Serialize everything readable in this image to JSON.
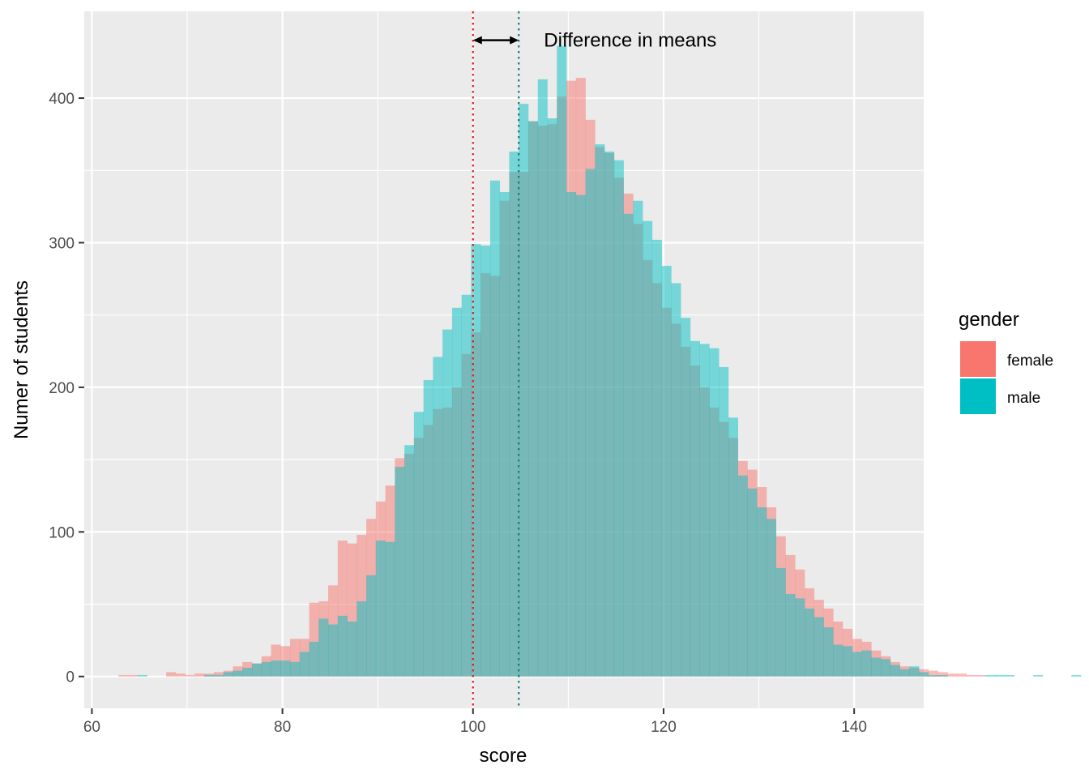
{
  "chart_data": {
    "type": "bar",
    "subtype": "overlaid histogram",
    "xlabel": "score",
    "ylabel": "Numer of students",
    "xlim": [
      59.2,
      147.3
    ],
    "ylim": [
      -22,
      460
    ],
    "xticks": [
      60,
      80,
      100,
      120,
      140
    ],
    "yticks": [
      0,
      100,
      200,
      300,
      400
    ],
    "grid": true,
    "bin_start": 62.8,
    "bin_width": 1,
    "legend": {
      "title": "gender",
      "position": "right",
      "items": [
        {
          "label": "female",
          "color": "#F8766D"
        },
        {
          "label": "male",
          "color": "#00BFC4"
        }
      ]
    },
    "series": [
      {
        "name": "female",
        "color": "#F8766D",
        "values": [
          1,
          1,
          0,
          0,
          0,
          3,
          2,
          1,
          2,
          2,
          3,
          4,
          7,
          10,
          9,
          14,
          22,
          21,
          26,
          26,
          51,
          52,
          63,
          94,
          92,
          98,
          109,
          121,
          132,
          151,
          154,
          165,
          174,
          185,
          186,
          200,
          223,
          238,
          279,
          277,
          329,
          349,
          349,
          384,
          381,
          382,
          401,
          412,
          414,
          385,
          366,
          362,
          345,
          334,
          313,
          288,
          272,
          255,
          244,
          228,
          215,
          200,
          186,
          176,
          165,
          149,
          143,
          131,
          117,
          97,
          84,
          74,
          61,
          53,
          47,
          38,
          33,
          26,
          24,
          18,
          14,
          10,
          7,
          6,
          5,
          4,
          3,
          2,
          2,
          1,
          1
        ],
        "mean": 100.0
      },
      {
        "name": "male",
        "color": "#00BFC4",
        "values": [
          0,
          0,
          1,
          0,
          0,
          0,
          0,
          0,
          0,
          1,
          1,
          3,
          4,
          6,
          9,
          10,
          11,
          11,
          10,
          17,
          24,
          40,
          36,
          42,
          38,
          52,
          70,
          94,
          93,
          145,
          160,
          183,
          205,
          221,
          240,
          255,
          264,
          299,
          298,
          343,
          335,
          363,
          396,
          384,
          413,
          386,
          436,
          335,
          333,
          351,
          368,
          363,
          357,
          320,
          329,
          315,
          302,
          284,
          272,
          248,
          232,
          230,
          227,
          214,
          179,
          139,
          130,
          117,
          109,
          75,
          57,
          54,
          47,
          41,
          34,
          22,
          21,
          17,
          18,
          13,
          12,
          8,
          5,
          7,
          3,
          1,
          1,
          0,
          0,
          0,
          0,
          1,
          1,
          1,
          0,
          0,
          1,
          0,
          0,
          0,
          1
        ],
        "mean": 104.8
      }
    ],
    "mean_lines": [
      {
        "series": "female",
        "x": 100.0,
        "color": "#E41A1C"
      },
      {
        "series": "male",
        "x": 104.8,
        "color": "#1B7A7A"
      }
    ],
    "annotations": [
      {
        "text": "Difference in means",
        "x": 116.5,
        "y": 440
      },
      {
        "type": "double-arrow",
        "from": 100.0,
        "to": 104.8,
        "y": 440
      }
    ]
  }
}
